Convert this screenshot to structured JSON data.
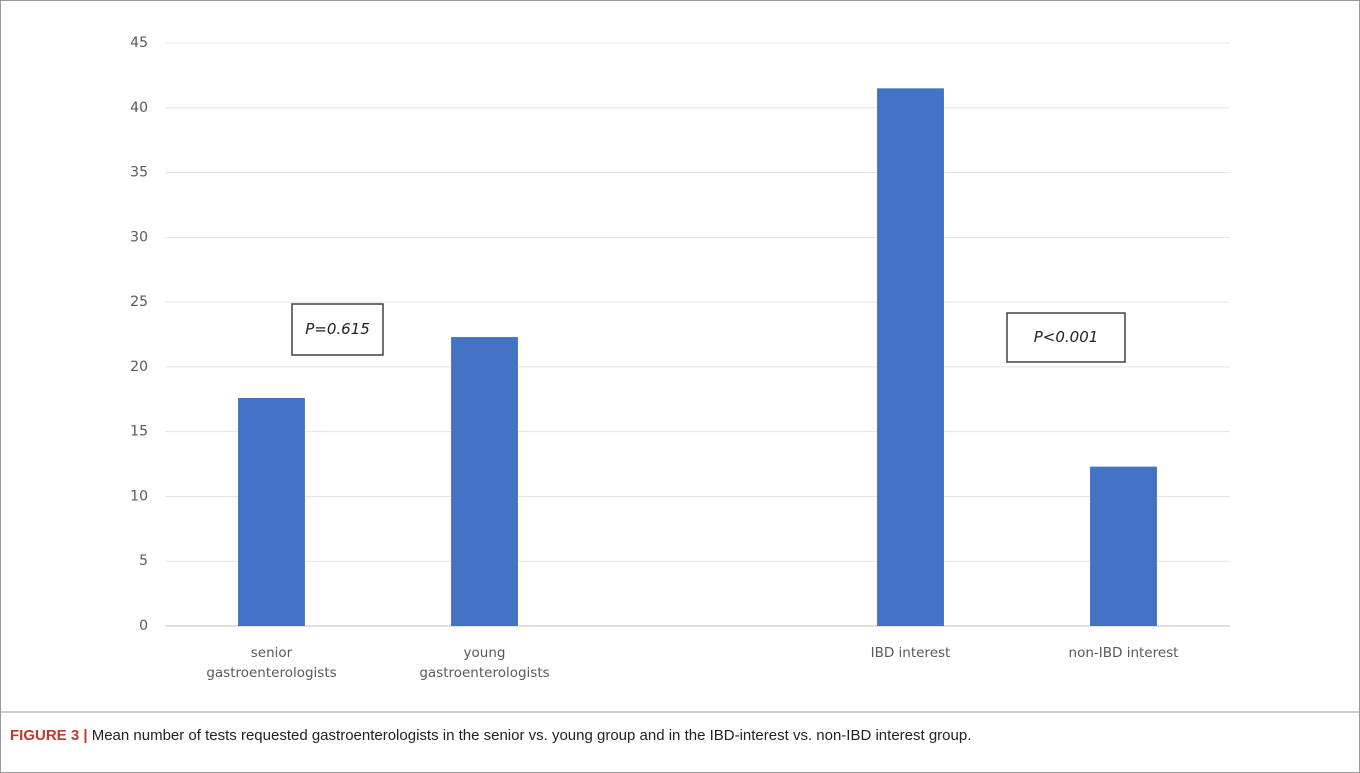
{
  "chart_data": {
    "type": "bar",
    "categories": [
      "senior gastroenterologists",
      "young gastroenterologists",
      null,
      "IBD interest",
      "non-IBD interest"
    ],
    "values": [
      17.6,
      22.3,
      null,
      41.5,
      12.3
    ],
    "color": "#4472c4",
    "ylim": [
      0,
      45
    ],
    "yticks": [
      0,
      5,
      10,
      15,
      20,
      25,
      30,
      35,
      40,
      45
    ],
    "grid": true,
    "annotations": [
      "P=0.615",
      "P<0.001"
    ],
    "caption": {
      "label": "FIGURE 3 |",
      "text": "Mean number of tests requested gastroenterologists in the senior vs. young group and in the IBD-interest vs. non-IBD interest group."
    }
  }
}
